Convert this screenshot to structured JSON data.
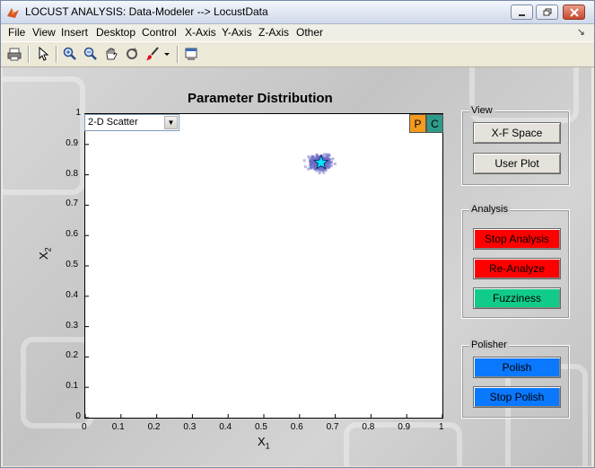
{
  "window": {
    "title": "LOCUST ANALYSIS: Data-Modeler --> LocustData"
  },
  "menu": [
    "File",
    "View",
    "Insert",
    "Desktop",
    "Control",
    "X-Axis",
    "Y-Axis",
    "Z-Axis",
    "Other"
  ],
  "toolbar_icons": [
    "print-icon",
    "pointer-icon",
    "zoom-in-icon",
    "zoom-out-icon",
    "pan-icon",
    "rotate-icon",
    "brush-icon",
    "dock-icon"
  ],
  "plot": {
    "dropdown_value": "2-D Scatter",
    "p_label": "P",
    "c_label": "C",
    "colors": {
      "p_button": "#f39a1f",
      "c_button": "#2f9a8a",
      "scatter": "#6c6cc4",
      "star": "#00e5ff"
    }
  },
  "chart_data": {
    "type": "scatter",
    "title": "Parameter Distribution",
    "xlabel": "X1",
    "ylabel": "X2",
    "xlim": [
      0,
      1
    ],
    "ylim": [
      0,
      1
    ],
    "xticks": [
      "0",
      "0.1",
      "0.2",
      "0.3",
      "0.4",
      "0.5",
      "0.6",
      "0.7",
      "0.8",
      "0.9",
      "1"
    ],
    "yticks": [
      "0",
      "0.1",
      "0.2",
      "0.3",
      "0.4",
      "0.5",
      "0.6",
      "0.7",
      "0.8",
      "0.9",
      "1"
    ],
    "cluster_center": [
      0.66,
      0.84
    ],
    "marker": {
      "shape": "star",
      "x": 0.66,
      "y": 0.84
    }
  },
  "panels": {
    "view": {
      "title": "View",
      "buttons": [
        "X-F Space",
        "User Plot"
      ]
    },
    "analysis": {
      "title": "Analysis",
      "buttons": [
        "Stop Analysis",
        "Re-Analyze",
        "Fuzziness"
      ],
      "colors": [
        "#ff0000",
        "#ff0000",
        "#11cc88"
      ]
    },
    "polisher": {
      "title": "Polisher",
      "buttons": [
        "Polish",
        "Stop Polish"
      ],
      "colors": [
        "#0a78ff",
        "#0a78ff"
      ]
    }
  }
}
